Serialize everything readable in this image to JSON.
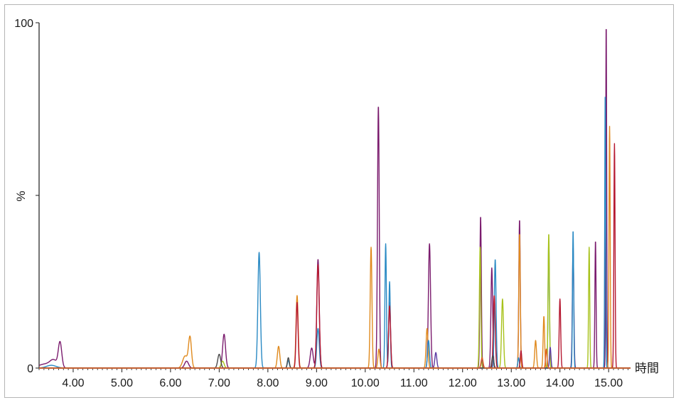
{
  "chart_data": {
    "type": "line",
    "title": "",
    "xlabel": "時間",
    "ylabel": "%",
    "xlim": [
      3.3,
      15.45
    ],
    "ylim": [
      0,
      100
    ],
    "grid": false,
    "legend": "none",
    "x_ticks": [
      "4.00",
      "5.00",
      "6.00",
      "7.00",
      "8.00",
      "9.00",
      "10.00",
      "11.00",
      "12.00",
      "13.00",
      "14.00",
      "15.00"
    ],
    "x_tick_values": [
      4,
      5,
      6,
      7,
      8,
      9,
      10,
      11,
      12,
      13,
      14,
      15
    ],
    "y_ticks": [
      "0",
      "%",
      "100"
    ],
    "y_tick_values": [
      0,
      50,
      100
    ],
    "colors": [
      "#7b1c6e",
      "#e08a1e",
      "#2a8ac4",
      "#b5172f",
      "#a8c21c",
      "#5b3aa3",
      "#4a4a4a",
      "#e06020"
    ],
    "series": [
      {
        "color": "#7b1c6e",
        "peaks": [
          [
            3.44,
            1.2,
            0.15
          ],
          [
            3.6,
            1.8,
            0.07
          ],
          [
            3.73,
            7.2,
            0.035
          ],
          [
            6.33,
            2.0,
            0.04
          ],
          [
            7.1,
            9.8,
            0.03
          ],
          [
            8.9,
            5.8,
            0.03
          ],
          [
            9.03,
            31.5,
            0.025
          ],
          [
            10.27,
            76,
            0.018
          ],
          [
            10.5,
            19,
            0.02
          ],
          [
            11.32,
            36,
            0.022
          ],
          [
            12.37,
            44,
            0.015
          ],
          [
            12.6,
            29,
            0.018
          ],
          [
            13.17,
            43,
            0.015
          ],
          [
            14.27,
            35,
            0.015
          ],
          [
            14.73,
            37,
            0.012
          ],
          [
            14.95,
            100,
            0.01
          ]
        ]
      },
      {
        "color": "#e08a1e",
        "peaks": [
          [
            6.4,
            8.8,
            0.03
          ],
          [
            6.3,
            3.5,
            0.05
          ],
          [
            8.22,
            6.3,
            0.025
          ],
          [
            8.6,
            21,
            0.022
          ],
          [
            10.12,
            35,
            0.018
          ],
          [
            10.28,
            5.5,
            0.02
          ],
          [
            11.27,
            11.5,
            0.02
          ],
          [
            13.17,
            39,
            0.015
          ],
          [
            13.5,
            8,
            0.018
          ],
          [
            13.67,
            15,
            0.015
          ],
          [
            15.02,
            70,
            0.012
          ]
        ]
      },
      {
        "color": "#2a8ac4",
        "peaks": [
          [
            3.55,
            0.8,
            0.1
          ],
          [
            7.82,
            33.5,
            0.025
          ],
          [
            8.42,
            2.2,
            0.02
          ],
          [
            9.03,
            11.5,
            0.025
          ],
          [
            10.42,
            36,
            0.015
          ],
          [
            10.5,
            25,
            0.015
          ],
          [
            11.3,
            8,
            0.02
          ],
          [
            12.67,
            31.5,
            0.018
          ],
          [
            13.15,
            3,
            0.015
          ],
          [
            13.77,
            37,
            0.014
          ],
          [
            14.27,
            40,
            0.012
          ],
          [
            14.93,
            80,
            0.01
          ]
        ]
      },
      {
        "color": "#b5172f",
        "peaks": [
          [
            8.6,
            19,
            0.02
          ],
          [
            9.03,
            30,
            0.025
          ],
          [
            10.5,
            18,
            0.02
          ],
          [
            12.65,
            21,
            0.02
          ],
          [
            13.2,
            5,
            0.015
          ],
          [
            14.0,
            20,
            0.015
          ],
          [
            15.12,
            65,
            0.012
          ]
        ]
      },
      {
        "color": "#a8c21c",
        "peaks": [
          [
            7.07,
            2.0,
            0.03
          ],
          [
            12.36,
            35,
            0.015
          ],
          [
            12.82,
            20,
            0.02
          ],
          [
            13.77,
            39,
            0.014
          ],
          [
            14.6,
            35,
            0.012
          ]
        ]
      },
      {
        "color": "#5b3aa3",
        "peaks": [
          [
            11.45,
            4.5,
            0.02
          ],
          [
            12.4,
            2.5,
            0.02
          ],
          [
            13.8,
            6,
            0.015
          ]
        ]
      },
      {
        "color": "#4a4a4a",
        "peaks": [
          [
            7.0,
            4.0,
            0.03
          ],
          [
            8.42,
            3.0,
            0.02
          ],
          [
            12.62,
            3.5,
            0.02
          ]
        ]
      },
      {
        "color": "#e06020",
        "peaks": [
          [
            12.4,
            3.0,
            0.02
          ],
          [
            13.72,
            5.5,
            0.015
          ]
        ]
      }
    ]
  }
}
